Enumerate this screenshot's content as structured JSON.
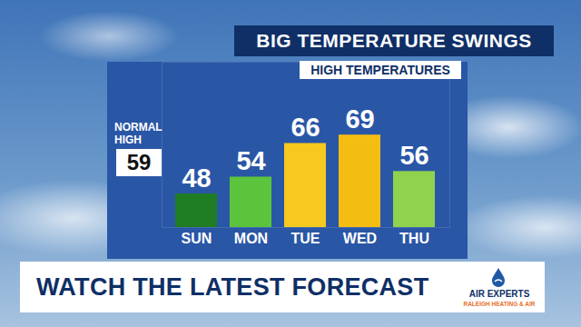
{
  "chart_data": {
    "type": "bar",
    "title": "BIG TEMPERATURE SWINGS",
    "subtitle": "HIGH TEMPERATURES",
    "categories": [
      "SUN",
      "MON",
      "TUE",
      "WED",
      "THU"
    ],
    "values": [
      48,
      54,
      66,
      69,
      56
    ],
    "colors": [
      "#1f7d24",
      "#5cc43c",
      "#f7c81e",
      "#f4bd12",
      "#8fd24e"
    ],
    "ylim": [
      36,
      95
    ],
    "data_labels": true,
    "tick_labels": "x",
    "normal_high": {
      "label": "NORMAL HIGH",
      "value": 59
    },
    "caption": "WATCH THE LATEST FORECAST",
    "sponsor": [
      "AIR EXPERTS",
      "RALEIGH HEATING & AIR"
    ]
  }
}
